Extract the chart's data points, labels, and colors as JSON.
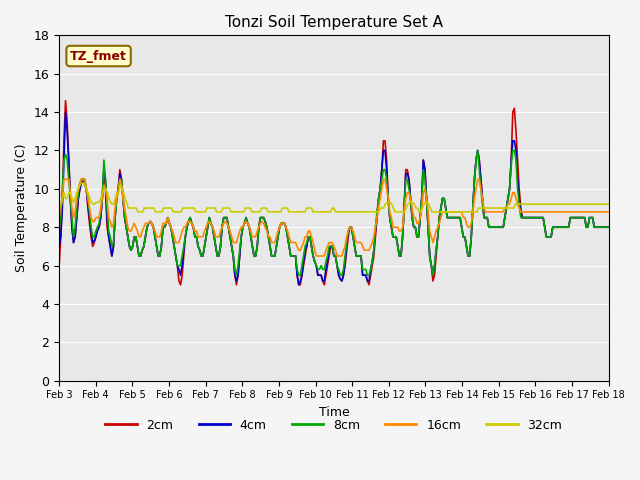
{
  "title": "Tonzi Soil Temperature Set A",
  "xlabel": "Time",
  "ylabel": "Soil Temperature (C)",
  "annotation_text": "TZ_fmet",
  "ylim": [
    0,
    18
  ],
  "xlim": [
    0,
    360
  ],
  "bg_color": "#e8e8e8",
  "plot_bg": "#f0f0f0",
  "legend_labels": [
    "2cm",
    "4cm",
    "8cm",
    "16cm",
    "32cm"
  ],
  "legend_colors": [
    "#cc0000",
    "#0000cc",
    "#00aa00",
    "#ff8800",
    "#cccc00"
  ],
  "xtick_labels": [
    "Feb 3",
    "Feb 4",
    "Feb 5",
    "Feb 6",
    "Feb 7",
    "Feb 8",
    "Feb 9",
    "Feb 10",
    "Feb 11",
    "Feb 12",
    "Feb 13",
    "Feb 14",
    "Feb 15",
    "Feb 16",
    "Feb 17",
    "Feb 18"
  ],
  "xtick_positions": [
    0,
    24,
    48,
    72,
    96,
    120,
    144,
    168,
    192,
    216,
    240,
    264,
    288,
    312,
    336,
    360
  ],
  "depth_2cm": [
    6.0,
    7.5,
    9.5,
    12.5,
    14.6,
    13.5,
    11.5,
    9.5,
    8.0,
    7.2,
    7.5,
    8.5,
    9.5,
    10.0,
    10.5,
    10.5,
    10.5,
    10.0,
    9.0,
    8.2,
    7.5,
    7.0,
    7.2,
    7.5,
    8.0,
    8.0,
    8.5,
    9.5,
    11.0,
    10.0,
    8.0,
    7.5,
    7.0,
    6.5,
    7.0,
    8.5,
    9.5,
    10.0,
    11.0,
    10.5,
    9.5,
    8.5,
    8.0,
    7.5,
    7.0,
    6.8,
    7.0,
    7.5,
    7.5,
    7.0,
    6.5,
    6.5,
    6.8,
    7.0,
    7.5,
    8.0,
    8.2,
    8.3,
    8.2,
    8.0,
    7.5,
    7.0,
    6.5,
    6.5,
    7.0,
    8.0,
    8.0,
    8.2,
    8.5,
    8.2,
    8.0,
    7.5,
    7.0,
    6.5,
    6.0,
    5.2,
    5.0,
    5.5,
    6.5,
    7.5,
    8.0,
    8.3,
    8.5,
    8.2,
    8.0,
    7.5,
    7.5,
    7.0,
    6.8,
    6.5,
    6.5,
    7.0,
    7.5,
    8.0,
    8.5,
    8.2,
    8.0,
    7.5,
    7.0,
    6.5,
    6.5,
    7.0,
    8.0,
    8.5,
    8.5,
    8.5,
    8.0,
    7.5,
    7.0,
    6.5,
    5.5,
    5.0,
    5.5,
    6.5,
    7.5,
    8.0,
    8.2,
    8.5,
    8.2,
    8.0,
    7.5,
    7.0,
    6.5,
    6.5,
    7.0,
    8.0,
    8.5,
    8.5,
    8.5,
    8.3,
    8.0,
    7.5,
    7.0,
    6.5,
    6.5,
    6.5,
    7.0,
    7.5,
    8.0,
    8.2,
    8.2,
    8.2,
    8.0,
    7.5,
    7.0,
    6.5,
    6.5,
    6.5,
    6.5,
    5.5,
    5.0,
    5.0,
    5.5,
    6.0,
    6.5,
    7.0,
    7.5,
    7.5,
    7.0,
    6.5,
    6.2,
    6.0,
    5.5,
    5.5,
    5.5,
    5.2,
    5.0,
    5.5,
    6.0,
    6.5,
    7.0,
    7.0,
    6.5,
    6.5,
    6.0,
    5.5,
    5.3,
    5.2,
    5.5,
    6.0,
    6.8,
    7.5,
    8.0,
    8.0,
    7.5,
    7.0,
    6.5,
    6.5,
    6.5,
    6.5,
    5.5,
    5.5,
    5.5,
    5.2,
    5.0,
    5.5,
    6.0,
    6.5,
    7.5,
    8.5,
    9.5,
    10.0,
    11.0,
    12.5,
    12.5,
    11.5,
    9.5,
    8.5,
    8.0,
    7.5,
    7.5,
    7.5,
    7.0,
    6.5,
    6.5,
    7.5,
    9.0,
    11.0,
    11.0,
    10.5,
    9.5,
    8.5,
    8.0,
    8.0,
    7.5,
    7.5,
    8.5,
    9.5,
    11.5,
    11.0,
    9.5,
    8.0,
    6.5,
    6.0,
    5.2,
    5.5,
    6.5,
    7.5,
    8.5,
    9.0,
    9.5,
    9.5,
    9.0,
    8.5,
    8.5,
    8.5,
    8.5,
    8.5,
    8.5,
    8.5,
    8.5,
    8.5,
    8.0,
    7.5,
    7.5,
    7.0,
    6.5,
    6.5,
    7.5,
    9.0,
    10.5,
    11.5,
    12.0,
    11.5,
    10.5,
    9.5,
    8.5,
    8.5,
    8.5,
    8.0,
    8.0,
    8.0,
    8.0,
    8.0,
    8.0,
    8.0,
    8.0,
    8.0,
    8.0,
    8.5,
    9.0,
    9.5,
    10.0,
    11.5,
    14.0,
    14.2,
    13.0,
    11.5,
    10.0,
    9.0,
    8.5,
    8.5,
    8.5,
    8.5,
    8.5,
    8.5,
    8.5,
    8.5,
    8.5,
    8.5,
    8.5,
    8.5,
    8.5,
    8.5,
    8.0,
    7.5,
    7.5,
    7.5,
    7.5,
    8.0,
    8.0,
    8.0,
    8.0,
    8.0,
    8.0,
    8.0,
    8.0,
    8.0,
    8.0,
    8.0,
    8.5,
    8.5,
    8.5,
    8.5,
    8.5,
    8.5,
    8.5,
    8.5,
    8.5,
    8.5,
    8.0,
    8.0,
    8.5,
    8.5,
    8.5,
    8.0,
    8.0,
    8.0,
    8.0,
    8.0,
    8.0,
    8.0,
    8.0,
    8.0,
    8.0
  ],
  "depth_4cm": [
    7.0,
    7.5,
    9.0,
    11.5,
    14.0,
    13.0,
    11.5,
    9.5,
    8.0,
    7.2,
    7.5,
    8.5,
    9.5,
    10.0,
    10.3,
    10.4,
    10.2,
    10.0,
    9.2,
    8.5,
    7.8,
    7.2,
    7.3,
    7.5,
    7.8,
    8.0,
    8.5,
    9.5,
    11.0,
    10.5,
    8.5,
    7.5,
    7.0,
    6.5,
    7.0,
    8.5,
    9.5,
    10.0,
    10.8,
    10.5,
    9.5,
    8.5,
    8.0,
    7.5,
    7.0,
    6.8,
    7.0,
    7.5,
    7.5,
    7.0,
    6.5,
    6.5,
    6.8,
    7.0,
    7.5,
    8.0,
    8.2,
    8.3,
    8.2,
    8.0,
    7.5,
    7.0,
    6.5,
    6.5,
    7.0,
    8.0,
    8.0,
    8.2,
    8.5,
    8.2,
    8.0,
    7.5,
    7.0,
    6.5,
    6.0,
    5.8,
    5.5,
    6.0,
    6.8,
    7.5,
    8.0,
    8.3,
    8.5,
    8.2,
    8.0,
    7.5,
    7.5,
    7.0,
    6.8,
    6.5,
    6.5,
    7.0,
    7.5,
    8.0,
    8.5,
    8.2,
    8.0,
    7.5,
    7.0,
    6.5,
    6.5,
    7.0,
    8.0,
    8.5,
    8.5,
    8.5,
    8.0,
    7.5,
    7.0,
    6.5,
    5.5,
    5.2,
    5.5,
    6.5,
    7.5,
    8.0,
    8.2,
    8.5,
    8.2,
    8.0,
    7.5,
    7.0,
    6.5,
    6.5,
    7.0,
    8.0,
    8.5,
    8.5,
    8.5,
    8.3,
    8.0,
    7.5,
    7.0,
    6.5,
    6.5,
    6.5,
    7.0,
    7.5,
    8.0,
    8.2,
    8.2,
    8.2,
    8.0,
    7.5,
    7.0,
    6.5,
    6.5,
    6.5,
    6.5,
    5.5,
    5.0,
    5.2,
    5.5,
    6.2,
    6.8,
    7.0,
    7.5,
    7.5,
    7.0,
    6.5,
    6.2,
    6.0,
    5.5,
    5.5,
    5.5,
    5.2,
    5.2,
    5.8,
    6.2,
    6.8,
    7.0,
    7.0,
    6.5,
    6.5,
    6.0,
    5.5,
    5.3,
    5.2,
    5.5,
    6.2,
    7.0,
    7.8,
    8.0,
    8.0,
    7.5,
    7.0,
    6.5,
    6.5,
    6.5,
    6.5,
    5.5,
    5.5,
    5.5,
    5.2,
    5.2,
    5.8,
    6.2,
    6.8,
    7.8,
    8.5,
    9.5,
    10.0,
    11.0,
    12.0,
    12.0,
    11.0,
    9.5,
    8.5,
    8.0,
    7.5,
    7.5,
    7.5,
    7.0,
    6.5,
    6.5,
    7.5,
    9.0,
    10.8,
    10.8,
    10.5,
    9.5,
    8.5,
    8.0,
    8.0,
    7.5,
    7.5,
    8.5,
    9.5,
    11.5,
    11.0,
    9.5,
    8.0,
    6.5,
    6.0,
    5.5,
    6.0,
    6.8,
    7.5,
    8.5,
    9.0,
    9.5,
    9.5,
    9.0,
    8.5,
    8.5,
    8.5,
    8.5,
    8.5,
    8.5,
    8.5,
    8.5,
    8.5,
    8.0,
    7.5,
    7.5,
    7.0,
    6.5,
    6.5,
    7.5,
    9.0,
    10.5,
    11.5,
    12.0,
    11.5,
    10.5,
    9.5,
    8.5,
    8.5,
    8.5,
    8.0,
    8.0,
    8.0,
    8.0,
    8.0,
    8.0,
    8.0,
    8.0,
    8.0,
    8.0,
    8.5,
    9.0,
    9.5,
    10.0,
    11.5,
    12.5,
    12.5,
    12.0,
    10.5,
    9.5,
    8.8,
    8.5,
    8.5,
    8.5,
    8.5,
    8.5,
    8.5,
    8.5,
    8.5,
    8.5,
    8.5,
    8.5,
    8.5,
    8.5,
    8.5,
    8.0,
    7.5,
    7.5,
    7.5,
    7.5,
    8.0,
    8.0,
    8.0,
    8.0,
    8.0,
    8.0,
    8.0,
    8.0,
    8.0,
    8.0,
    8.0,
    8.5,
    8.5,
    8.5,
    8.5,
    8.5,
    8.5,
    8.5,
    8.5,
    8.5,
    8.5,
    8.0,
    8.0,
    8.5,
    8.5,
    8.5,
    8.0,
    8.0,
    8.0,
    8.0,
    8.0,
    8.0,
    8.0,
    8.0,
    8.0,
    8.0
  ],
  "depth_8cm": [
    8.0,
    8.5,
    10.0,
    11.5,
    11.8,
    11.5,
    10.5,
    9.5,
    8.5,
    7.5,
    8.0,
    9.0,
    9.8,
    10.3,
    10.5,
    10.5,
    10.3,
    10.0,
    9.5,
    8.8,
    8.0,
    7.5,
    7.5,
    7.8,
    8.0,
    8.2,
    8.8,
    9.5,
    11.5,
    10.5,
    9.0,
    7.8,
    7.5,
    7.0,
    7.2,
    8.5,
    9.5,
    10.0,
    10.5,
    10.5,
    9.5,
    8.5,
    8.0,
    7.5,
    7.0,
    6.8,
    7.0,
    7.5,
    7.5,
    7.0,
    6.5,
    6.5,
    6.8,
    7.0,
    7.5,
    8.0,
    8.2,
    8.3,
    8.2,
    8.0,
    7.5,
    7.0,
    6.5,
    6.5,
    7.0,
    8.0,
    8.0,
    8.2,
    8.5,
    8.2,
    8.0,
    7.5,
    7.0,
    6.5,
    6.0,
    6.0,
    6.0,
    6.5,
    7.0,
    7.5,
    8.0,
    8.3,
    8.5,
    8.2,
    8.0,
    7.5,
    7.5,
    7.0,
    6.8,
    6.5,
    6.5,
    7.0,
    7.5,
    8.0,
    8.5,
    8.2,
    8.0,
    7.5,
    7.0,
    6.5,
    6.5,
    7.0,
    8.0,
    8.5,
    8.5,
    8.5,
    8.0,
    7.5,
    7.0,
    6.5,
    5.8,
    5.5,
    6.0,
    6.8,
    7.5,
    8.0,
    8.2,
    8.5,
    8.2,
    8.0,
    7.5,
    7.0,
    6.5,
    6.5,
    7.0,
    8.0,
    8.5,
    8.5,
    8.5,
    8.3,
    8.0,
    7.5,
    7.0,
    6.5,
    6.5,
    6.5,
    7.0,
    7.5,
    8.0,
    8.2,
    8.2,
    8.2,
    8.0,
    7.5,
    7.0,
    6.5,
    6.5,
    6.5,
    6.5,
    5.8,
    5.5,
    5.5,
    6.0,
    6.5,
    7.0,
    7.2,
    7.5,
    7.5,
    7.0,
    6.5,
    6.2,
    6.0,
    5.8,
    5.8,
    6.0,
    5.8,
    5.8,
    6.2,
    6.5,
    7.0,
    7.0,
    7.0,
    6.5,
    6.5,
    6.0,
    5.8,
    5.5,
    5.5,
    5.8,
    6.5,
    7.2,
    7.8,
    8.0,
    8.0,
    7.5,
    7.0,
    6.5,
    6.5,
    6.5,
    6.5,
    5.8,
    5.8,
    5.8,
    5.5,
    5.5,
    5.8,
    6.2,
    6.8,
    8.0,
    8.8,
    9.5,
    10.0,
    10.5,
    11.0,
    11.0,
    10.5,
    9.5,
    8.5,
    8.0,
    7.5,
    7.5,
    7.5,
    7.0,
    6.5,
    6.5,
    7.5,
    9.0,
    10.5,
    10.5,
    10.0,
    9.5,
    8.5,
    8.0,
    8.0,
    7.5,
    7.5,
    8.5,
    9.5,
    11.0,
    10.5,
    9.5,
    8.0,
    6.5,
    6.0,
    5.5,
    6.0,
    6.8,
    7.5,
    8.5,
    9.0,
    9.5,
    9.5,
    9.0,
    8.5,
    8.5,
    8.5,
    8.5,
    8.5,
    8.5,
    8.5,
    8.5,
    8.5,
    8.0,
    7.5,
    7.5,
    7.0,
    6.5,
    6.5,
    7.5,
    9.0,
    10.5,
    11.5,
    12.0,
    11.0,
    10.0,
    9.2,
    8.5,
    8.5,
    8.5,
    8.0,
    8.0,
    8.0,
    8.0,
    8.0,
    8.0,
    8.0,
    8.0,
    8.0,
    8.0,
    8.5,
    9.0,
    9.5,
    10.0,
    11.2,
    12.0,
    12.0,
    11.5,
    10.0,
    9.2,
    8.5,
    8.5,
    8.5,
    8.5,
    8.5,
    8.5,
    8.5,
    8.5,
    8.5,
    8.5,
    8.5,
    8.5,
    8.5,
    8.5,
    8.5,
    8.0,
    7.5,
    7.5,
    7.5,
    7.5,
    8.0,
    8.0,
    8.0,
    8.0,
    8.0,
    8.0,
    8.0,
    8.0,
    8.0,
    8.0,
    8.0,
    8.5,
    8.5,
    8.5,
    8.5,
    8.5,
    8.5,
    8.5,
    8.5,
    8.5,
    8.5,
    8.0,
    8.0,
    8.5,
    8.5,
    8.5,
    8.0,
    8.0,
    8.0,
    8.0,
    8.0,
    8.0,
    8.0,
    8.0,
    8.0,
    8.0
  ],
  "depth_16cm": [
    8.5,
    9.0,
    9.5,
    10.5,
    10.5,
    10.5,
    10.5,
    9.8,
    9.0,
    8.5,
    8.8,
    9.5,
    10.0,
    10.3,
    10.5,
    10.5,
    10.5,
    10.0,
    9.5,
    9.0,
    8.5,
    8.3,
    8.3,
    8.5,
    8.5,
    8.5,
    9.0,
    9.5,
    10.2,
    10.0,
    9.5,
    8.5,
    8.3,
    8.0,
    8.2,
    9.0,
    9.5,
    9.8,
    10.5,
    10.2,
    9.5,
    9.0,
    8.5,
    8.0,
    7.8,
    7.8,
    8.0,
    8.2,
    8.0,
    7.8,
    7.5,
    7.5,
    7.8,
    8.0,
    8.2,
    8.2,
    8.2,
    8.3,
    8.2,
    8.0,
    7.8,
    7.5,
    7.5,
    7.5,
    7.8,
    8.2,
    8.2,
    8.2,
    8.5,
    8.2,
    8.0,
    7.8,
    7.5,
    7.2,
    7.2,
    7.2,
    7.5,
    7.8,
    8.0,
    8.0,
    8.2,
    8.3,
    8.3,
    8.2,
    8.0,
    7.8,
    7.8,
    7.5,
    7.5,
    7.5,
    7.5,
    7.8,
    8.0,
    8.2,
    8.3,
    8.2,
    8.0,
    7.8,
    7.5,
    7.5,
    7.5,
    7.8,
    8.0,
    8.2,
    8.3,
    8.2,
    8.0,
    7.8,
    7.5,
    7.2,
    7.2,
    7.2,
    7.5,
    7.8,
    8.0,
    8.0,
    8.2,
    8.3,
    8.2,
    8.0,
    7.8,
    7.5,
    7.5,
    7.5,
    7.8,
    8.0,
    8.2,
    8.3,
    8.2,
    8.0,
    7.8,
    7.5,
    7.5,
    7.2,
    7.2,
    7.2,
    7.5,
    7.8,
    8.0,
    8.2,
    8.2,
    8.2,
    8.0,
    7.8,
    7.5,
    7.2,
    7.2,
    7.2,
    7.2,
    7.0,
    6.8,
    6.8,
    7.0,
    7.2,
    7.5,
    7.5,
    7.8,
    7.8,
    7.5,
    7.2,
    6.8,
    6.5,
    6.5,
    6.5,
    6.5,
    6.5,
    6.5,
    6.8,
    7.0,
    7.2,
    7.2,
    7.2,
    7.0,
    6.8,
    6.5,
    6.5,
    6.5,
    6.5,
    6.8,
    7.0,
    7.5,
    7.8,
    8.0,
    8.0,
    7.8,
    7.5,
    7.2,
    7.2,
    7.2,
    7.2,
    7.0,
    6.8,
    6.8,
    6.8,
    6.8,
    7.0,
    7.2,
    7.5,
    8.0,
    8.5,
    9.0,
    9.5,
    10.0,
    10.5,
    10.5,
    10.0,
    9.5,
    8.8,
    8.5,
    8.0,
    8.0,
    8.0,
    8.0,
    7.8,
    7.8,
    8.0,
    8.8,
    9.5,
    9.8,
    9.8,
    9.5,
    9.0,
    8.5,
    8.5,
    8.2,
    8.2,
    8.5,
    9.0,
    9.8,
    10.0,
    9.5,
    8.8,
    7.8,
    7.5,
    7.2,
    7.5,
    7.8,
    8.0,
    8.2,
    8.5,
    8.8,
    8.8,
    8.8,
    8.8,
    8.8,
    8.8,
    8.8,
    8.8,
    8.8,
    8.8,
    8.8,
    8.8,
    8.8,
    8.5,
    8.5,
    8.2,
    8.0,
    8.0,
    8.2,
    8.8,
    9.5,
    10.0,
    10.5,
    10.5,
    10.0,
    9.5,
    9.0,
    8.8,
    8.8,
    8.8,
    8.8,
    8.8,
    8.8,
    8.8,
    8.8,
    8.8,
    8.8,
    8.8,
    8.8,
    9.0,
    9.0,
    9.2,
    9.2,
    9.5,
    9.8,
    9.8,
    9.5,
    9.2,
    9.0,
    8.8,
    8.8,
    8.8,
    8.8,
    8.8,
    8.8,
    8.8,
    8.8,
    8.8,
    8.8,
    8.8,
    8.8,
    8.8,
    8.8,
    8.8,
    8.8,
    8.8,
    8.8,
    8.8,
    8.8,
    8.8,
    8.8,
    8.8,
    8.8,
    8.8,
    8.8,
    8.8,
    8.8,
    8.8,
    8.8,
    8.8,
    8.8,
    8.8,
    8.8,
    8.8,
    8.8,
    8.8,
    8.8,
    8.8,
    8.8,
    8.8,
    8.8,
    8.8,
    8.8,
    8.8,
    8.8,
    8.8,
    8.8,
    8.8,
    8.8,
    8.8,
    8.8,
    8.8,
    8.8,
    8.8,
    8.8
  ],
  "depth_32cm": [
    9.0,
    9.2,
    9.5,
    9.8,
    9.5,
    9.5,
    9.8,
    9.8,
    9.5,
    9.3,
    9.5,
    9.8,
    10.0,
    10.2,
    10.3,
    10.3,
    10.2,
    10.0,
    9.8,
    9.5,
    9.3,
    9.2,
    9.2,
    9.3,
    9.3,
    9.3,
    9.5,
    9.8,
    10.0,
    10.0,
    9.8,
    9.5,
    9.3,
    9.2,
    9.2,
    9.5,
    9.8,
    9.8,
    10.2,
    10.0,
    9.8,
    9.5,
    9.3,
    9.0,
    9.0,
    9.0,
    9.0,
    9.0,
    9.0,
    8.8,
    8.8,
    8.8,
    8.8,
    9.0,
    9.0,
    9.0,
    9.0,
    9.0,
    9.0,
    9.0,
    8.8,
    8.8,
    8.8,
    8.8,
    8.8,
    9.0,
    9.0,
    9.0,
    9.0,
    9.0,
    9.0,
    8.8,
    8.8,
    8.8,
    8.8,
    8.8,
    8.8,
    9.0,
    9.0,
    9.0,
    9.0,
    9.0,
    9.0,
    9.0,
    9.0,
    8.8,
    8.8,
    8.8,
    8.8,
    8.8,
    8.8,
    8.8,
    9.0,
    9.0,
    9.0,
    9.0,
    9.0,
    9.0,
    8.8,
    8.8,
    8.8,
    8.8,
    9.0,
    9.0,
    9.0,
    9.0,
    9.0,
    8.8,
    8.8,
    8.8,
    8.8,
    8.8,
    8.8,
    8.8,
    8.8,
    8.8,
    9.0,
    9.0,
    9.0,
    9.0,
    8.8,
    8.8,
    8.8,
    8.8,
    8.8,
    8.8,
    9.0,
    9.0,
    9.0,
    9.0,
    8.8,
    8.8,
    8.8,
    8.8,
    8.8,
    8.8,
    8.8,
    8.8,
    8.8,
    9.0,
    9.0,
    9.0,
    9.0,
    8.8,
    8.8,
    8.8,
    8.8,
    8.8,
    8.8,
    8.8,
    8.8,
    8.8,
    8.8,
    8.8,
    9.0,
    9.0,
    9.0,
    9.0,
    8.8,
    8.8,
    8.8,
    8.8,
    8.8,
    8.8,
    8.8,
    8.8,
    8.8,
    8.8,
    8.8,
    8.8,
    9.0,
    9.0,
    8.8,
    8.8,
    8.8,
    8.8,
    8.8,
    8.8,
    8.8,
    8.8,
    8.8,
    8.8,
    8.8,
    8.8,
    8.8,
    8.8,
    8.8,
    8.8,
    8.8,
    8.8,
    8.8,
    8.8,
    8.8,
    8.8,
    8.8,
    8.8,
    8.8,
    8.8,
    8.8,
    8.8,
    9.0,
    9.0,
    9.0,
    9.2,
    9.3,
    9.3,
    9.3,
    9.2,
    9.0,
    8.8,
    8.8,
    8.8,
    8.8,
    8.8,
    8.8,
    8.8,
    9.0,
    9.2,
    9.3,
    9.3,
    9.3,
    9.2,
    9.0,
    9.0,
    8.8,
    8.8,
    9.0,
    9.2,
    9.3,
    9.3,
    9.2,
    9.0,
    8.8,
    8.8,
    8.8,
    8.8,
    8.8,
    8.8,
    8.8,
    8.8,
    8.8,
    8.8,
    8.8,
    8.8,
    8.8,
    8.8,
    8.8,
    8.8,
    8.8,
    8.8,
    8.8,
    8.8,
    8.8,
    8.8,
    8.8,
    8.8,
    8.8,
    8.8,
    8.8,
    8.8,
    8.8,
    9.0,
    9.0,
    9.0,
    9.0,
    9.0,
    9.0,
    9.0,
    9.0,
    9.0,
    9.0,
    9.0,
    9.0,
    9.0,
    9.0,
    9.0,
    9.0,
    9.0,
    9.0,
    9.0,
    9.0,
    9.0,
    9.0,
    9.0,
    9.2,
    9.2,
    9.2,
    9.2,
    9.2,
    9.2,
    9.2,
    9.2,
    9.2,
    9.2,
    9.2,
    9.2,
    9.2,
    9.2,
    9.2,
    9.2,
    9.2,
    9.2,
    9.2,
    9.2,
    9.2,
    9.2,
    9.2,
    9.2,
    9.2,
    9.2,
    9.2,
    9.2,
    9.2,
    9.2,
    9.2,
    9.2,
    9.2,
    9.2,
    9.2,
    9.2,
    9.2,
    9.2,
    9.2,
    9.2,
    9.2,
    9.2,
    9.2,
    9.2,
    9.2,
    9.2,
    9.2,
    9.2,
    9.2,
    9.2,
    9.2,
    9.2,
    9.2,
    9.2,
    9.2,
    9.2,
    9.2,
    9.2,
    9.2
  ]
}
